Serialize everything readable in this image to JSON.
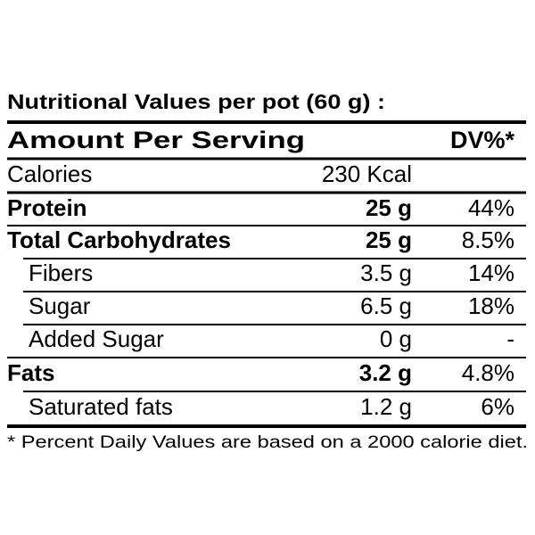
{
  "title": "Nutritional Values per pot (60 g) :",
  "table": {
    "header": [
      "Amount Per Serving",
      "DV%*"
    ],
    "rows": [
      [
        "Calories",
        "230 Kcal",
        ""
      ],
      [
        "Protein",
        "25 g",
        "44%"
      ],
      [
        "Total Carbohydrates",
        "25 g",
        "8.5%"
      ],
      [
        "Fibers",
        "3.5 g",
        "14%"
      ],
      [
        "Sugar",
        "6.5 g",
        "18%"
      ],
      [
        "Added Sugar",
        "0 g",
        "-"
      ],
      [
        "Fats",
        "3.2 g",
        "4.8%"
      ],
      [
        "Saturated fats",
        "1.2 g",
        "6%"
      ]
    ]
  },
  "footnote": "* Percent Daily Values are based on a 2000 calorie diet."
}
